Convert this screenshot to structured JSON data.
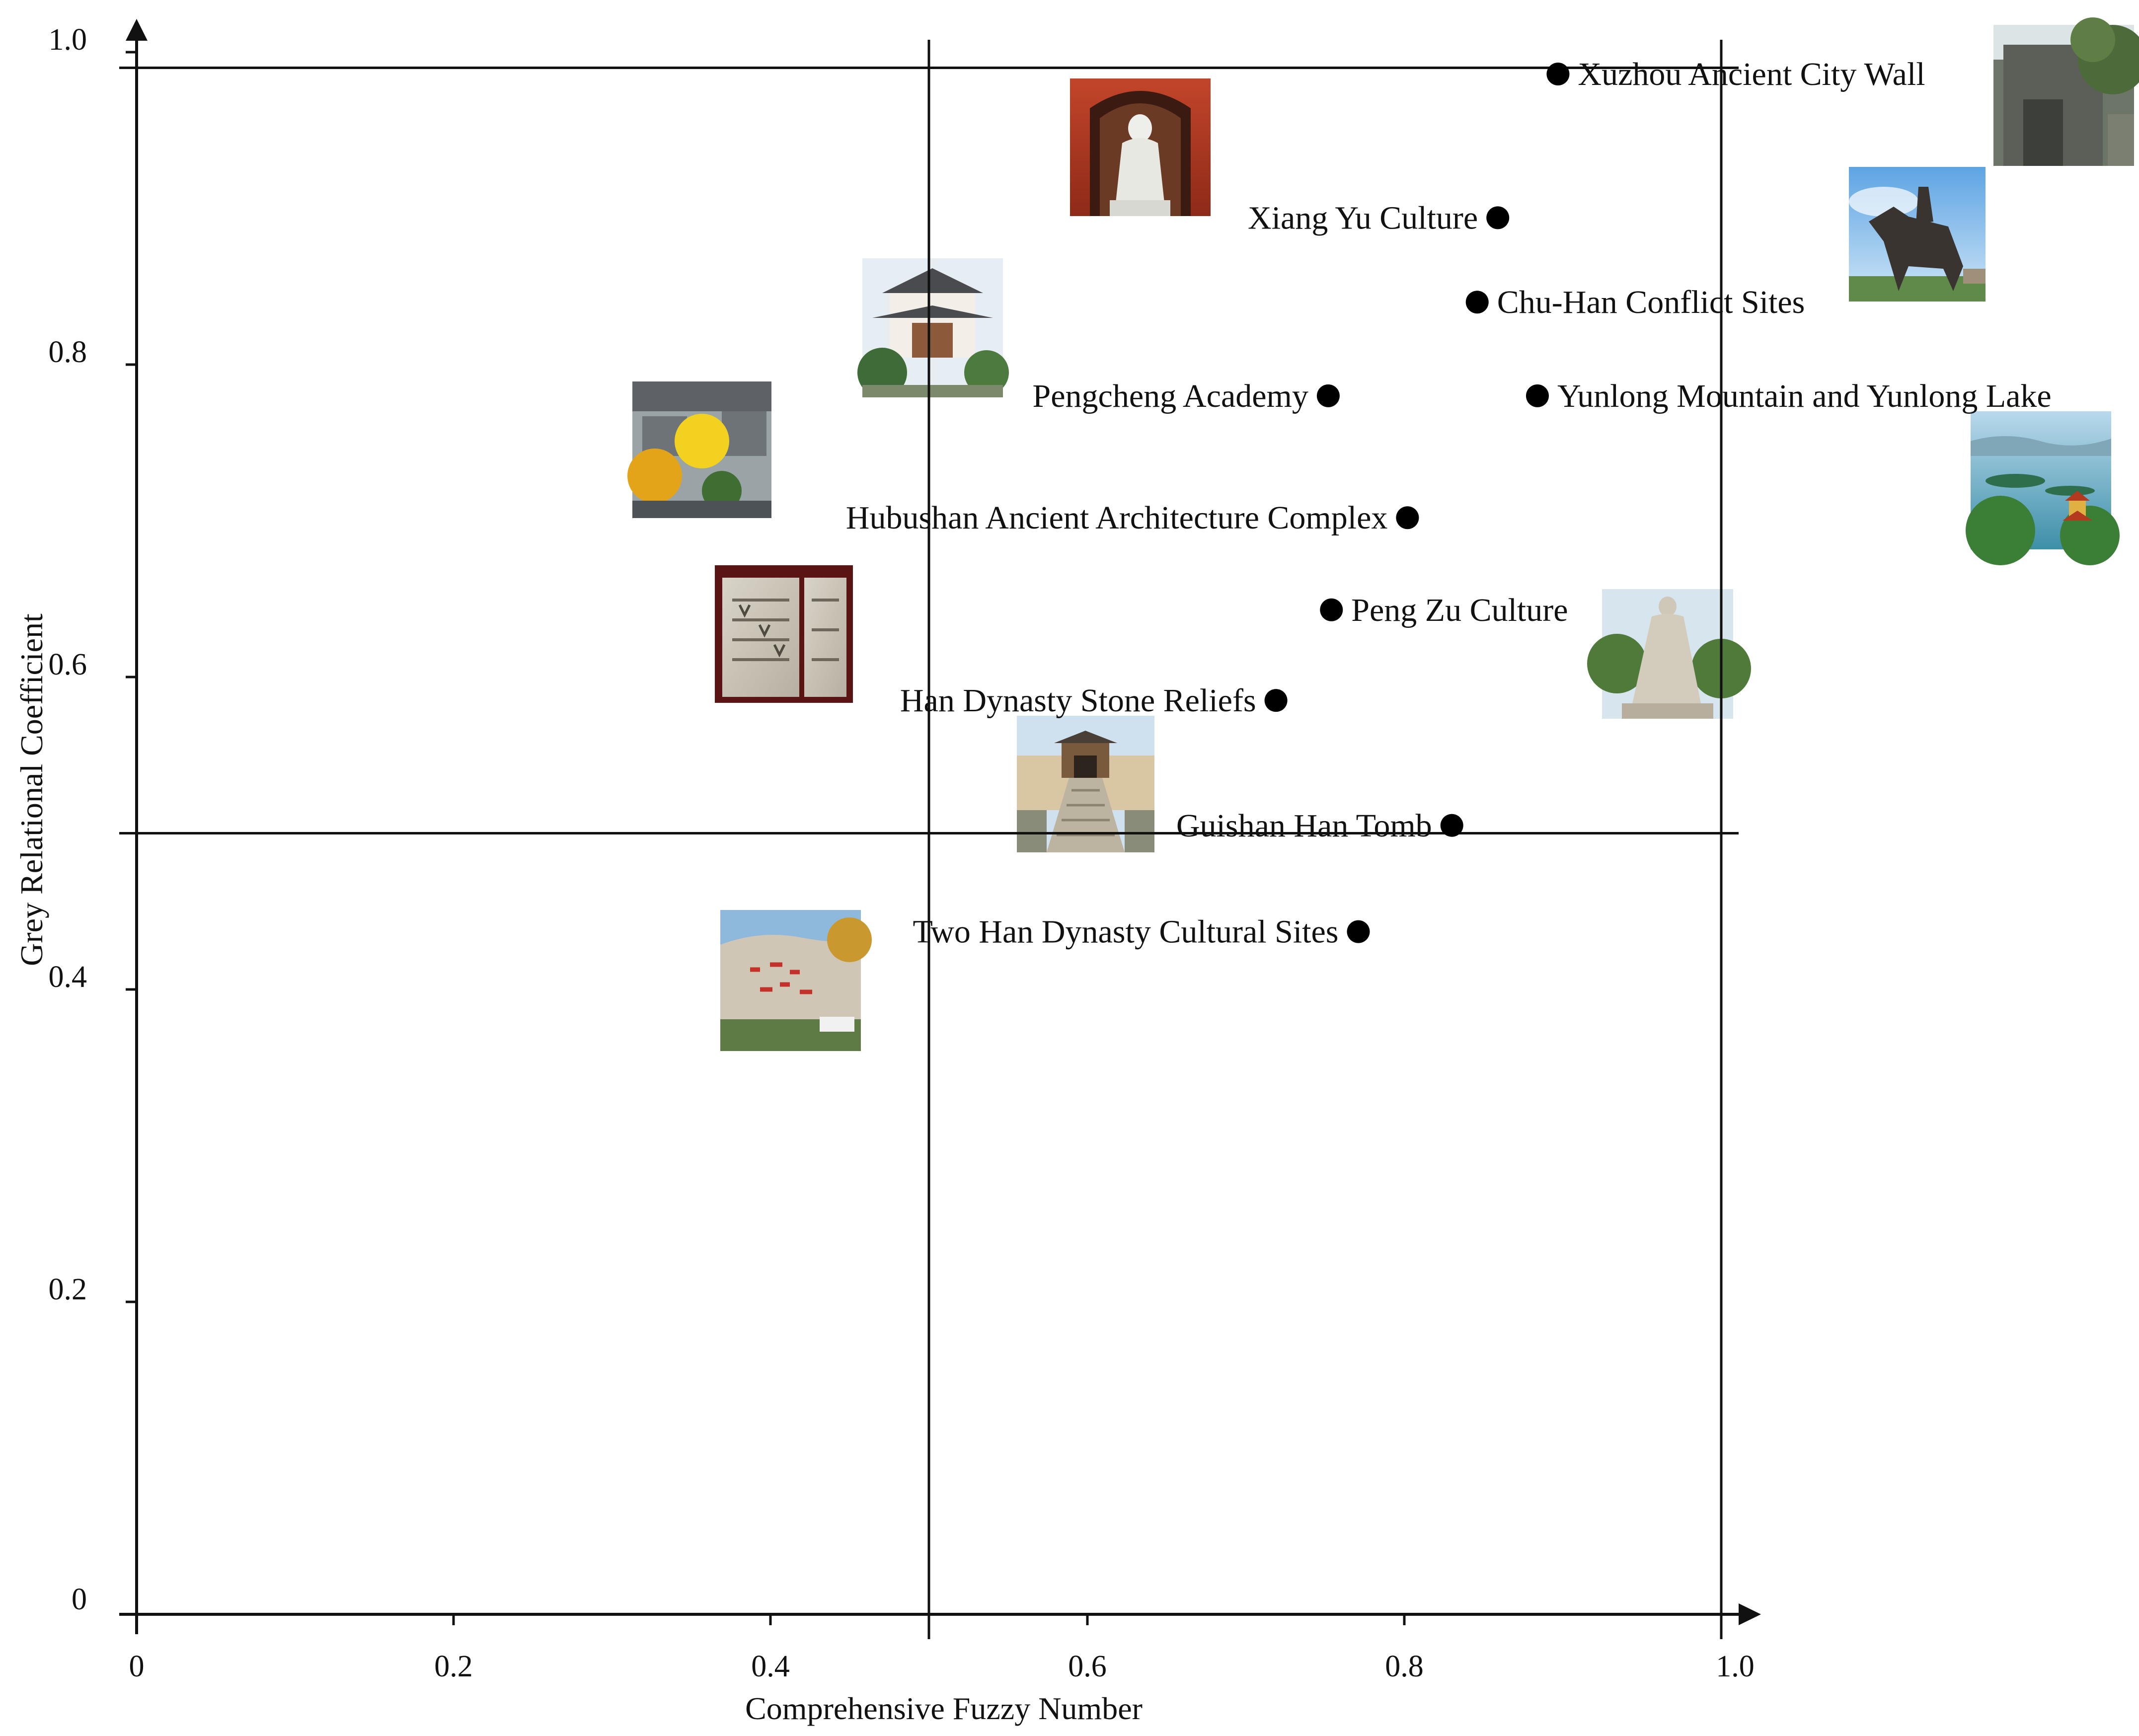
{
  "chart_data": {
    "type": "scatter",
    "xlabel": "Comprehensive Fuzzy Number",
    "ylabel": "Grey Relational Coefficient",
    "xlim": [
      0,
      1.0
    ],
    "ylim": [
      0,
      1.0
    ],
    "x_ticks": [
      "0",
      "0.2",
      "0.4",
      "0.6",
      "0.8",
      "1.0"
    ],
    "y_ticks": [
      "0",
      "0.2",
      "0.4",
      "0.6",
      "0.8",
      "1.0"
    ],
    "reference_lines": {
      "x": [
        0.5,
        1.0
      ],
      "y": [
        0.5,
        0.99
      ]
    },
    "grid": false,
    "points": [
      {
        "label": "Xuzhou Ancient City Wall",
        "x": 0.897,
        "y": 0.986,
        "label_side": "right",
        "photo": "city-wall-photo"
      },
      {
        "label": "Xiang Yu Culture",
        "x": 0.859,
        "y": 0.894,
        "label_side": "left",
        "photo": "xiang-yu-statue-photo"
      },
      {
        "label": "Chu-Han Conflict Sites",
        "x": 0.846,
        "y": 0.84,
        "label_side": "right",
        "photo": "equestrian-statue-photo"
      },
      {
        "label": "Pengcheng Academy",
        "x": 0.752,
        "y": 0.78,
        "label_side": "left",
        "photo": "academy-building-photo"
      },
      {
        "label": "Yunlong Mountain and Yunlong Lake",
        "x": 0.884,
        "y": 0.78,
        "label_side": "right",
        "photo": "lake-pavilion-photo"
      },
      {
        "label": "Hubushan Ancient Architecture Complex",
        "x": 0.802,
        "y": 0.702,
        "label_side": "left",
        "photo": "courtyard-ginkgo-photo"
      },
      {
        "label": "Peng Zu Culture",
        "x": 0.754,
        "y": 0.643,
        "label_side": "right",
        "photo": "peng-zu-statue-photo"
      },
      {
        "label": "Han Dynasty Stone Reliefs",
        "x": 0.719,
        "y": 0.585,
        "label_side": "left",
        "photo": "stone-relief-photo"
      },
      {
        "label": "Guishan Han Tomb",
        "x": 0.83,
        "y": 0.505,
        "label_side": "left",
        "photo": "tomb-gate-photo"
      },
      {
        "label": "Two Han Dynasty Cultural Sites",
        "x": 0.771,
        "y": 0.437,
        "label_side": "left",
        "photo": "cliff-carving-photo"
      }
    ],
    "colors": {
      "marker": "#000000",
      "axis": "#111111",
      "text": "#111111"
    }
  }
}
